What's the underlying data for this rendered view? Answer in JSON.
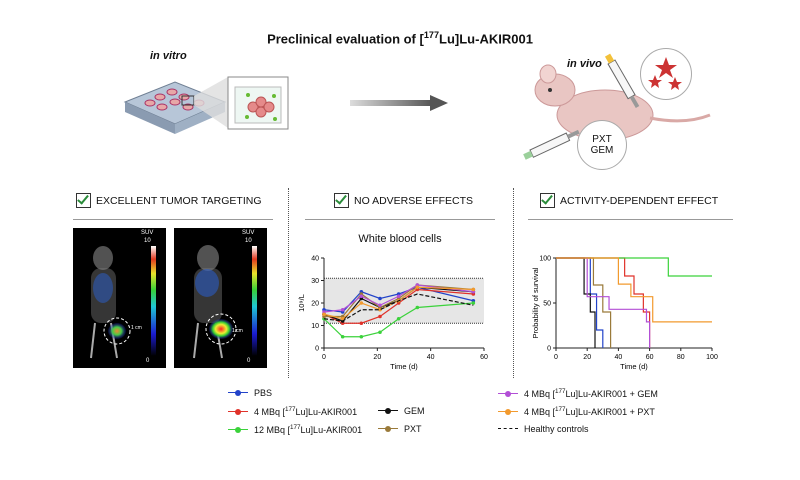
{
  "title": "Preclinical evaluation of [177Lu]Lu-AKIR001",
  "top": {
    "in_vitro_label": "in vitro",
    "in_vivo_label": "in vivo",
    "drug_labels": [
      "PXT",
      "GEM"
    ]
  },
  "sections": [
    {
      "header": "EXCELLENT TUMOR TARGETING"
    },
    {
      "header": "NO ADVERSE EFFECTS"
    },
    {
      "header": "ACTIVITY-DEPENDENT EFFECT"
    }
  ],
  "images": {
    "suv_label": "SUV",
    "suv_max": "10",
    "suv_min": "0",
    "scale_label": "1 cm"
  },
  "wbc": {
    "title": "White blood cells",
    "xlabel": "Time (d)",
    "ylabel": "10⁹/L",
    "xticks": [
      "0",
      "20",
      "40",
      "60"
    ],
    "yticks": [
      "0",
      "10",
      "20",
      "30",
      "40"
    ]
  },
  "survival": {
    "xlabel": "Time (d)",
    "ylabel": "Probability of survival",
    "xticks": [
      "0",
      "20",
      "40",
      "60",
      "80",
      "100"
    ],
    "yticks": [
      "0",
      "50",
      "100"
    ]
  },
  "legend": [
    {
      "label": "PBS",
      "color": "#2243c9",
      "style": "dot"
    },
    {
      "label": "4 MBq [177Lu]Lu-AKIR001",
      "color": "#e0322a",
      "style": "dot"
    },
    {
      "label": "12 MBq [177Lu]Lu-AKIR001",
      "color": "#3bd23b",
      "style": "dot"
    },
    {
      "label": "GEM",
      "color": "#111111",
      "style": "dot"
    },
    {
      "label": "PXT",
      "color": "#9a7a3a",
      "style": "dot"
    },
    {
      "label": "4 MBq [177Lu]Lu-AKIR001 + GEM",
      "color": "#b24fd6",
      "style": "dot"
    },
    {
      "label": "4 MBq [177Lu]Lu-AKIR001 + PXT",
      "color": "#f29a2e",
      "style": "dot"
    },
    {
      "label": "Healthy controls",
      "color": "#111111",
      "style": "dash"
    }
  ],
  "chart_data": [
    {
      "type": "line",
      "title": "White blood cells",
      "xlabel": "Time (d)",
      "ylabel": "10⁹/L",
      "xlim": [
        0,
        60
      ],
      "ylim": [
        0,
        40
      ],
      "reference_band": [
        11,
        31
      ],
      "series": [
        {
          "name": "PBS",
          "color": "#2243c9",
          "x": [
            0,
            7,
            14,
            21,
            28,
            35,
            56
          ],
          "y": [
            17,
            16,
            25,
            22,
            24,
            27,
            21
          ]
        },
        {
          "name": "4 MBq [177Lu]Lu-AKIR001",
          "color": "#e0322a",
          "x": [
            0,
            7,
            14,
            21,
            28,
            35,
            56
          ],
          "y": [
            15,
            11,
            11,
            14,
            20,
            26,
            24
          ]
        },
        {
          "name": "12 MBq [177Lu]Lu-AKIR001",
          "color": "#3bd23b",
          "x": [
            0,
            7,
            14,
            21,
            28,
            35,
            56
          ],
          "y": [
            13,
            5,
            5,
            7,
            13,
            18,
            20
          ]
        },
        {
          "name": "GEM",
          "color": "#111111",
          "x": [
            0,
            7,
            14,
            21,
            28,
            35,
            56
          ],
          "y": [
            15,
            12,
            22,
            18,
            21,
            27,
            25
          ]
        },
        {
          "name": "PXT",
          "color": "#9a7a3a",
          "x": [
            0,
            7,
            14,
            21,
            28,
            35,
            56
          ],
          "y": [
            14,
            14,
            24,
            18,
            22,
            28,
            26
          ]
        },
        {
          "name": "4 MBq [177Lu]Lu-AKIR001 + GEM",
          "color": "#b24fd6",
          "x": [
            0,
            7,
            14,
            21,
            28,
            35,
            56
          ],
          "y": [
            16,
            17,
            23,
            19,
            23,
            28,
            25
          ]
        },
        {
          "name": "4 MBq [177Lu]Lu-AKIR001 + PXT",
          "color": "#f29a2e",
          "x": [
            0,
            7,
            14,
            21,
            28,
            35,
            56
          ],
          "y": [
            15,
            13,
            20,
            17,
            21,
            27,
            26
          ]
        },
        {
          "name": "Healthy controls",
          "color": "#111111",
          "dash": true,
          "x": [
            0,
            7,
            14,
            21,
            28,
            35,
            56
          ],
          "y": [
            13,
            12,
            17,
            17,
            21,
            24,
            19
          ]
        }
      ]
    },
    {
      "type": "line",
      "title": "",
      "xlabel": "Time (d)",
      "ylabel": "Probability of survival",
      "xlim": [
        0,
        100
      ],
      "ylim": [
        0,
        100
      ],
      "series": [
        {
          "name": "PBS",
          "color": "#2243c9",
          "x": [
            0,
            18,
            22,
            26,
            30
          ],
          "y": [
            100,
            100,
            60,
            20,
            0
          ]
        },
        {
          "name": "4 MBq [177Lu]Lu-AKIR001",
          "color": "#e0322a",
          "x": [
            0,
            38,
            44,
            50,
            56,
            60
          ],
          "y": [
            100,
            100,
            80,
            60,
            40,
            0
          ]
        },
        {
          "name": "12 MBq [177Lu]Lu-AKIR001",
          "color": "#3bd23b",
          "x": [
            0,
            72,
            72,
            100
          ],
          "y": [
            100,
            100,
            80,
            80
          ]
        },
        {
          "name": "GEM",
          "color": "#111111",
          "x": [
            0,
            12,
            18,
            22,
            25
          ],
          "y": [
            100,
            100,
            60,
            40,
            0
          ]
        },
        {
          "name": "PXT",
          "color": "#9a7a3a",
          "x": [
            0,
            20,
            24,
            30,
            35
          ],
          "y": [
            100,
            100,
            70,
            40,
            0
          ]
        },
        {
          "name": "4 MBq [177Lu]Lu-AKIR001 + GEM",
          "color": "#b24fd6",
          "x": [
            0,
            8,
            20,
            34,
            58,
            60
          ],
          "y": [
            100,
            100,
            57,
            43,
            29,
            0
          ]
        },
        {
          "name": "4 MBq [177Lu]Lu-AKIR001 + PXT",
          "color": "#f29a2e",
          "x": [
            0,
            35,
            40,
            48,
            62,
            100
          ],
          "y": [
            100,
            100,
            71,
            57,
            29,
            29
          ]
        }
      ]
    }
  ]
}
